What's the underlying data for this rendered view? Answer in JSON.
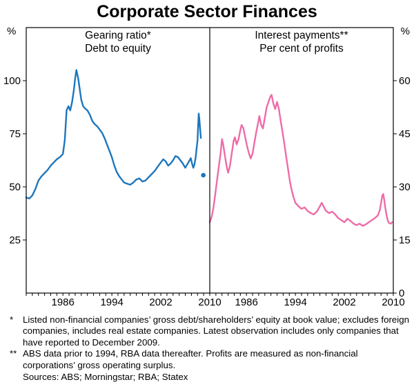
{
  "chart_data": {
    "type": "line",
    "title": "Corporate Sector Finances",
    "x_range": [
      1980,
      2010
    ],
    "x_tick_labels": [
      1986,
      1994,
      2002,
      2010
    ],
    "left_unit": "%",
    "right_unit": "%",
    "grid": false,
    "legend": "none",
    "panels": [
      {
        "title": "Gearing ratio*",
        "subtitle": "Debt to equity",
        "axis": "left",
        "ylim": [
          0,
          125
        ],
        "yticks": [
          25,
          50,
          75,
          100
        ],
        "color": "#1c76bd",
        "series": [
          {
            "name": "gearing-ratio",
            "points": [
              [
                1980,
                45
              ],
              [
                1980.5,
                44.5
              ],
              [
                1981,
                46
              ],
              [
                1981.5,
                49
              ],
              [
                1982,
                53
              ],
              [
                1982.5,
                55
              ],
              [
                1983,
                56.5
              ],
              [
                1983.5,
                58
              ],
              [
                1984,
                60
              ],
              [
                1984.5,
                61.5
              ],
              [
                1985,
                63
              ],
              [
                1985.5,
                64
              ],
              [
                1986,
                65.5
              ],
              [
                1986.3,
                72
              ],
              [
                1986.6,
                86
              ],
              [
                1986.9,
                88
              ],
              [
                1987.2,
                86
              ],
              [
                1987.5,
                90
              ],
              [
                1987.8,
                96
              ],
              [
                1988,
                101
              ],
              [
                1988.2,
                105
              ],
              [
                1988.5,
                101
              ],
              [
                1988.8,
                95
              ],
              [
                1989,
                91
              ],
              [
                1989.3,
                88
              ],
              [
                1989.6,
                87
              ],
              [
                1990,
                86
              ],
              [
                1990.4,
                84
              ],
              [
                1990.8,
                81
              ],
              [
                1991.2,
                79.5
              ],
              [
                1991.6,
                78.5
              ],
              [
                1992,
                77
              ],
              [
                1992.4,
                75.5
              ],
              [
                1992.8,
                73
              ],
              [
                1993.2,
                70
              ],
              [
                1993.6,
                67
              ],
              [
                1994,
                64
              ],
              [
                1994.4,
                60
              ],
              [
                1994.8,
                57
              ],
              [
                1995.2,
                55
              ],
              [
                1995.6,
                53.5
              ],
              [
                1996,
                52
              ],
              [
                1996.5,
                51.5
              ],
              [
                1997,
                51
              ],
              [
                1997.5,
                52
              ],
              [
                1998,
                53.5
              ],
              [
                1998.5,
                54
              ],
              [
                1999,
                52.5
              ],
              [
                1999.5,
                53
              ],
              [
                2000,
                54.5
              ],
              [
                2000.5,
                56
              ],
              [
                2001,
                57.5
              ],
              [
                2001.5,
                59.5
              ],
              [
                2002,
                61.5
              ],
              [
                2002.4,
                63
              ],
              [
                2002.8,
                62
              ],
              [
                2003.2,
                60
              ],
              [
                2003.6,
                61
              ],
              [
                2004,
                62.5
              ],
              [
                2004.4,
                64.5
              ],
              [
                2004.8,
                64
              ],
              [
                2005.2,
                62.5
              ],
              [
                2005.6,
                61
              ],
              [
                2006,
                59
              ],
              [
                2006.3,
                60.5
              ],
              [
                2006.6,
                62
              ],
              [
                2006.9,
                63.5
              ],
              [
                2007.1,
                61
              ],
              [
                2007.3,
                59
              ],
              [
                2007.5,
                60.5
              ],
              [
                2007.7,
                64
              ],
              [
                2007.85,
                68
              ],
              [
                2008,
                72
              ],
              [
                2008.1,
                79
              ],
              [
                2008.2,
                84.5
              ],
              [
                2008.3,
                82
              ],
              [
                2008.45,
                76
              ],
              [
                2008.55,
                73
              ]
            ]
          }
        ],
        "dot": [
          2008.95,
          55.5
        ],
        "dot_label": "latest observation"
      },
      {
        "title": "Interest payments**",
        "subtitle": "Per cent of profits",
        "axis": "right",
        "ylim": [
          0,
          75
        ],
        "yticks": [
          0,
          15,
          30,
          45,
          60
        ],
        "color": "#ef6ba8",
        "series": [
          {
            "name": "interest-payments",
            "points": [
              [
                1980,
                20
              ],
              [
                1980.3,
                21.5
              ],
              [
                1980.6,
                24
              ],
              [
                1980.9,
                28
              ],
              [
                1981.2,
                32
              ],
              [
                1981.5,
                36
              ],
              [
                1981.8,
                40
              ],
              [
                1982,
                43.5
              ],
              [
                1982.2,
                42
              ],
              [
                1982.5,
                38.5
              ],
              [
                1982.8,
                35.5
              ],
              [
                1983,
                34
              ],
              [
                1983.3,
                36
              ],
              [
                1983.6,
                39.5
              ],
              [
                1983.9,
                43
              ],
              [
                1984.1,
                44
              ],
              [
                1984.4,
                42
              ],
              [
                1984.7,
                43.5
              ],
              [
                1985,
                46
              ],
              [
                1985.2,
                47.5
              ],
              [
                1985.5,
                46.5
              ],
              [
                1985.8,
                44
              ],
              [
                1986.1,
                41.5
              ],
              [
                1986.4,
                39.5
              ],
              [
                1986.7,
                38
              ],
              [
                1987,
                39.5
              ],
              [
                1987.3,
                42.5
              ],
              [
                1987.6,
                45.5
              ],
              [
                1987.9,
                48
              ],
              [
                1988.1,
                50
              ],
              [
                1988.4,
                47.5
              ],
              [
                1988.7,
                46.5
              ],
              [
                1989,
                49.5
              ],
              [
                1989.3,
                52.5
              ],
              [
                1989.6,
                54
              ],
              [
                1989.9,
                55.5
              ],
              [
                1990.1,
                56
              ],
              [
                1990.4,
                53.5
              ],
              [
                1990.7,
                52
              ],
              [
                1991,
                54
              ],
              [
                1991.3,
                52
              ],
              [
                1991.6,
                48.5
              ],
              [
                1991.9,
                45.5
              ],
              [
                1992.2,
                42
              ],
              [
                1992.5,
                38.5
              ],
              [
                1992.8,
                35
              ],
              [
                1993.1,
                31.5
              ],
              [
                1993.4,
                29
              ],
              [
                1993.7,
                27
              ],
              [
                1994,
                25.5
              ],
              [
                1994.5,
                24.5
              ],
              [
                1995,
                23.8
              ],
              [
                1995.5,
                24.2
              ],
              [
                1996,
                23.2
              ],
              [
                1996.5,
                22.6
              ],
              [
                1997,
                22.2
              ],
              [
                1997.5,
                23
              ],
              [
                1998,
                24.5
              ],
              [
                1998.3,
                25.5
              ],
              [
                1998.6,
                24.5
              ],
              [
                1999,
                23.2
              ],
              [
                1999.5,
                22.6
              ],
              [
                2000,
                23
              ],
              [
                2000.5,
                22.2
              ],
              [
                2001,
                21.2
              ],
              [
                2001.5,
                20.6
              ],
              [
                2002,
                20
              ],
              [
                2002.5,
                21
              ],
              [
                2003,
                20.4
              ],
              [
                2003.5,
                19.6
              ],
              [
                2004,
                19.2
              ],
              [
                2004.5,
                19.6
              ],
              [
                2005,
                19
              ],
              [
                2005.5,
                19.4
              ],
              [
                2006,
                20
              ],
              [
                2006.5,
                20.6
              ],
              [
                2007,
                21.2
              ],
              [
                2007.5,
                22
              ],
              [
                2007.8,
                23.5
              ],
              [
                2008,
                25.5
              ],
              [
                2008.2,
                27.5
              ],
              [
                2008.35,
                28
              ],
              [
                2008.5,
                26.5
              ],
              [
                2008.7,
                24
              ],
              [
                2008.9,
                22
              ],
              [
                2009.1,
                20.5
              ],
              [
                2009.3,
                19.8
              ],
              [
                2009.6,
                19.6
              ],
              [
                2009.8,
                20
              ]
            ]
          }
        ]
      }
    ]
  },
  "footnotes": [
    {
      "marker": "*",
      "text": "Listed non-financial companies’ gross debt/shareholders’ equity at book value; excludes foreign companies, includes real estate companies. Latest observation includes only companies that have reported to December 2009."
    },
    {
      "marker": "**",
      "text": "ABS data prior to 1994, RBA data thereafter. Profits are measured as non-financial corporations’ gross operating surplus."
    }
  ],
  "sources": "Sources: ABS; Morningstar; RBA; Statex"
}
